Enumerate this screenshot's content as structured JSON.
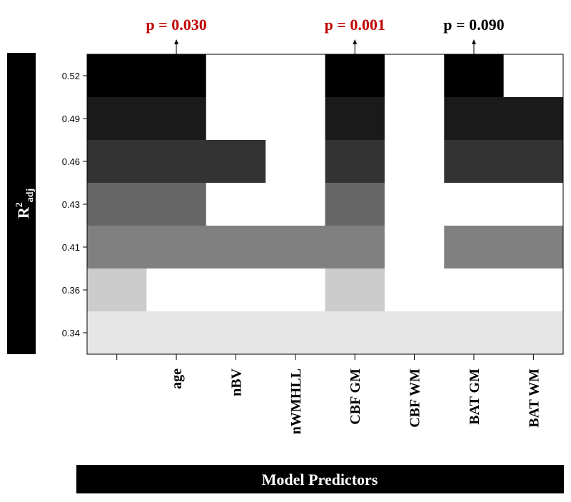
{
  "chart_data": {
    "type": "heatmap",
    "xlabel": "Model Predictors",
    "ylabel": {
      "base": "R",
      "sup": "2",
      "sub": "adj"
    },
    "columns": [
      "",
      "age",
      "nBV",
      "nWMHLL",
      "CBF GM",
      "CBF WM",
      "BAT GM",
      "BAT WM"
    ],
    "rows": [
      {
        "r2": "0.52",
        "color": "#000000",
        "included": [
          "age",
          "CBF GM",
          "BAT GM"
        ]
      },
      {
        "r2": "0.49",
        "color": "#1a1a1a",
        "included": [
          "age",
          "CBF GM",
          "BAT GM",
          "BAT WM"
        ]
      },
      {
        "r2": "0.46",
        "color": "#333333",
        "included": [
          "age",
          "nBV",
          "CBF GM",
          "BAT GM",
          "BAT WM"
        ]
      },
      {
        "r2": "0.43",
        "color": "#666666",
        "included": [
          "age",
          "CBF GM"
        ]
      },
      {
        "r2": "0.41",
        "color": "#808080",
        "included": [
          "age",
          "nBV",
          "nWMHLL",
          "CBF GM",
          "BAT GM",
          "BAT WM"
        ]
      },
      {
        "r2": "0.36",
        "color": "#cccccc",
        "included": [
          "CBF GM"
        ]
      },
      {
        "r2": "0.34",
        "color": "#e6e6e6",
        "included": [
          "age",
          "nBV",
          "nWMHLL",
          "CBF GM",
          "CBF WM",
          "BAT GM",
          "BAT WM"
        ]
      }
    ],
    "annotations": [
      {
        "column": "age",
        "text": "p = 0.030",
        "color": "#c00000"
      },
      {
        "column": "CBF GM",
        "text": "p = 0.001",
        "color": "#c00000"
      },
      {
        "column": "BAT GM",
        "text": "p = 0.090",
        "color": "#000000"
      }
    ]
  }
}
